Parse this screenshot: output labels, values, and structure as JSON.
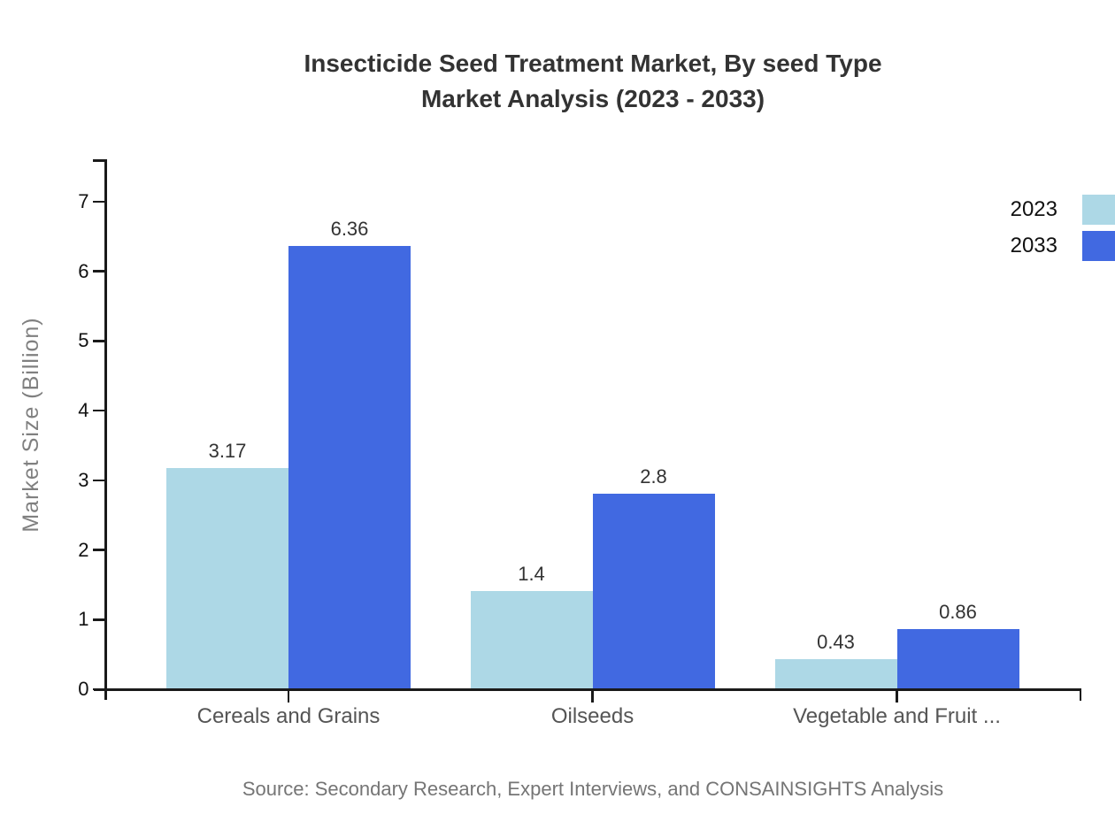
{
  "title": {
    "line1": "Insecticide Seed Treatment Market, By seed Type",
    "line2": "Market Analysis (2023 - 2033)"
  },
  "ylabel": "Market Size (Billion)",
  "source": "Source: Secondary Research, Expert Interviews, and CONSAINSIGHTS Analysis",
  "chart_data": {
    "type": "bar",
    "categories": [
      "Cereals and Grains",
      "Oilseeds",
      "Vegetable and Fruit ..."
    ],
    "series": [
      {
        "name": "2023",
        "color": "#ADD8E6",
        "values": [
          3.17,
          1.4,
          0.43
        ]
      },
      {
        "name": "2033",
        "color": "#4169E1",
        "values": [
          6.36,
          2.8,
          0.86
        ]
      }
    ],
    "value_labels": [
      [
        "3.17",
        "1.4",
        "0.43"
      ],
      [
        "6.36",
        "2.8",
        "0.86"
      ]
    ],
    "title": "Insecticide Seed Treatment Market, By seed Type Market Analysis (2023 - 2033)",
    "xlabel": "",
    "ylabel": "Market Size (Billion)",
    "ylim": [
      0,
      7
    ],
    "yticks": [
      0,
      1,
      2,
      3,
      4,
      5,
      6,
      7
    ],
    "grid": false,
    "legend_position": "top-right"
  }
}
